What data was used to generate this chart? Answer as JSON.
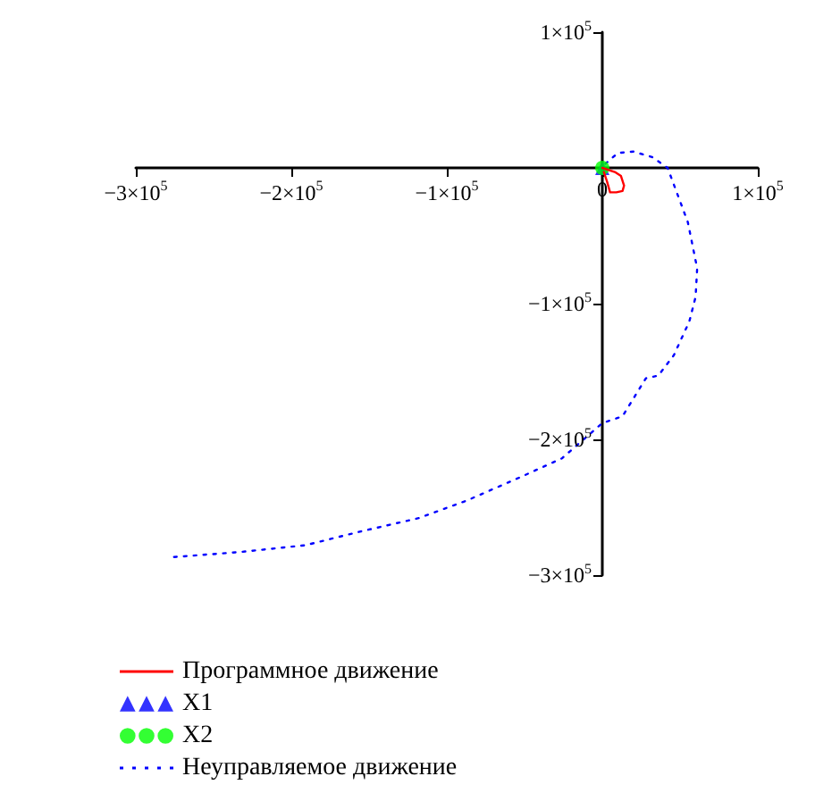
{
  "chart_data": {
    "type": "line",
    "legend": "bottom left",
    "grid": false,
    "xlim": [
      -300000,
      100000
    ],
    "ylim": [
      -300000,
      100000
    ],
    "xticks": [
      {
        "value": -300000,
        "label": "−3×10$^{5}$"
      },
      {
        "value": -200000,
        "label": "−2×10$^{5}$"
      },
      {
        "value": -100000,
        "label": "−1×10$^{5}$"
      },
      0,
      {
        "value": 100000,
        "label": "1×10$^{5}$"
      }
    ],
    "yticks": [
      {
        "value": -300000,
        "label": "−3×10$^{5}$"
      },
      {
        "value": -200000,
        "label": "−2×10$^{5}$"
      },
      {
        "value": -100000,
        "label": "−1×10$^{5}$"
      },
      {
        "value": 100000,
        "label": "1×10$^{5}$"
      }
    ],
    "series": [
      {
        "name": "Программное движение",
        "color": "#ff0000",
        "line_style": "solid",
        "marker": "none",
        "x": [
          0,
          8000,
          12000,
          14000,
          13000,
          9000,
          5000,
          3000,
          1000
        ],
        "values": [
          0,
          -3000,
          -6000,
          -13000,
          -17000,
          -18000,
          -18000,
          -10000,
          -3000
        ]
      },
      {
        "name": "X1",
        "type": "scatter",
        "color": "#0000ff",
        "marker": "triangle",
        "x": [
          0
        ],
        "values": [
          0
        ]
      },
      {
        "name": "X2",
        "type": "scatter",
        "color": "#00ff00",
        "marker": "circle",
        "x": [
          0
        ],
        "values": [
          0
        ]
      },
      {
        "name": "Неуправляемое движение",
        "color": "#0000ff",
        "line_style": "dotted",
        "marker": "none",
        "x": [
          2000,
          10000,
          20000,
          32000,
          42000,
          55000,
          61000,
          60000,
          56000,
          46000,
          36000,
          28000,
          13000,
          0,
          -26000,
          -53000,
          -87000,
          -118000,
          -156000,
          -191000,
          -233000,
          -279000
        ],
        "values": [
          3000,
          11000,
          12000,
          8000,
          0,
          -40000,
          -74000,
          -95000,
          -113000,
          -138000,
          -153000,
          -155000,
          -183000,
          -188000,
          -214000,
          -228000,
          -245000,
          -258000,
          -268000,
          -278000,
          -283000,
          -287000
        ]
      }
    ]
  }
}
